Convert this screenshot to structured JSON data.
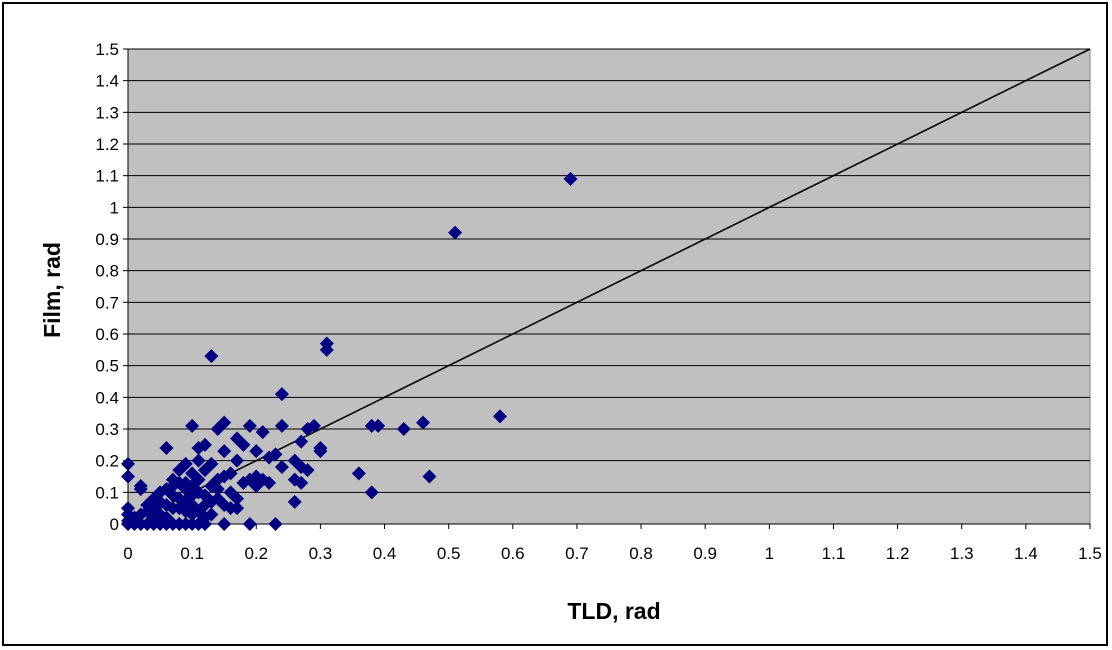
{
  "chart_data": {
    "type": "scatter",
    "title": "",
    "xlabel": "TLD, rad",
    "ylabel": "Film, rad",
    "xlim": [
      0,
      1.5
    ],
    "ylim": [
      0,
      1.5
    ],
    "x_ticks": [
      "0",
      "0.1",
      "0.2",
      "0.3",
      "0.4",
      "0.5",
      "0.6",
      "0.7",
      "0.8",
      "0.9",
      "1",
      "1.1",
      "1.2",
      "1.3",
      "1.4",
      "1.5"
    ],
    "y_ticks": [
      "0",
      "0.1",
      "0.2",
      "0.3",
      "0.4",
      "0.5",
      "0.6",
      "0.7",
      "0.8",
      "0.9",
      "1",
      "1.1",
      "1.2",
      "1.3",
      "1.4",
      "1.5"
    ],
    "grid": "horizontal",
    "legend": "none",
    "colors": {
      "plot_background": "#c0c0c0",
      "marker": "#000080",
      "grid": "#000000",
      "reference_line": "#000000"
    },
    "reference_line": {
      "x": [
        0,
        1.5
      ],
      "y": [
        0,
        1.5
      ]
    },
    "series": [
      {
        "marker": "diamond",
        "points": [
          [
            0.69,
            1.09
          ],
          [
            0.51,
            0.92
          ],
          [
            0.31,
            0.57
          ],
          [
            0.31,
            0.55
          ],
          [
            0.13,
            0.53
          ],
          [
            0.58,
            0.34
          ],
          [
            0.24,
            0.41
          ],
          [
            0.46,
            0.32
          ],
          [
            0.43,
            0.3
          ],
          [
            0.38,
            0.31
          ],
          [
            0.39,
            0.31
          ],
          [
            0.47,
            0.15
          ],
          [
            0.36,
            0.16
          ],
          [
            0.38,
            0.1
          ],
          [
            0.3,
            0.24
          ],
          [
            0.3,
            0.23
          ],
          [
            0.29,
            0.31
          ],
          [
            0.28,
            0.3
          ],
          [
            0.27,
            0.26
          ],
          [
            0.26,
            0.2
          ],
          [
            0.27,
            0.18
          ],
          [
            0.28,
            0.17
          ],
          [
            0.26,
            0.14
          ],
          [
            0.27,
            0.13
          ],
          [
            0.26,
            0.07
          ],
          [
            0.24,
            0.31
          ],
          [
            0.24,
            0.18
          ],
          [
            0.23,
            0.22
          ],
          [
            0.22,
            0.21
          ],
          [
            0.21,
            0.29
          ],
          [
            0.2,
            0.23
          ],
          [
            0.2,
            0.15
          ],
          [
            0.21,
            0.14
          ],
          [
            0.22,
            0.13
          ],
          [
            0.2,
            0.12
          ],
          [
            0.19,
            0.31
          ],
          [
            0.19,
            0.14
          ],
          [
            0.18,
            0.25
          ],
          [
            0.17,
            0.27
          ],
          [
            0.17,
            0.2
          ],
          [
            0.17,
            0.08
          ],
          [
            0.17,
            0.05
          ],
          [
            0.16,
            0.16
          ],
          [
            0.15,
            0.32
          ],
          [
            0.15,
            0.23
          ],
          [
            0.15,
            0.15
          ],
          [
            0.14,
            0.3
          ],
          [
            0.14,
            0.11
          ],
          [
            0.13,
            0.19
          ],
          [
            0.12,
            0.25
          ],
          [
            0.11,
            0.24
          ],
          [
            0.12,
            0.17
          ],
          [
            0.11,
            0.2
          ],
          [
            0.1,
            0.31
          ],
          [
            0.1,
            0.16
          ],
          [
            0.09,
            0.19
          ],
          [
            0.09,
            0.13
          ],
          [
            0.08,
            0.17
          ],
          [
            0.08,
            0.08
          ],
          [
            0.07,
            0.14
          ],
          [
            0.07,
            0.09
          ],
          [
            0.06,
            0.24
          ],
          [
            0.06,
            0.11
          ],
          [
            0.06,
            0.06
          ],
          [
            0.05,
            0.07
          ],
          [
            0.05,
            0.03
          ],
          [
            0.04,
            0.05
          ],
          [
            0.04,
            0.02
          ],
          [
            0.03,
            0.04
          ],
          [
            0.02,
            0.12
          ],
          [
            0.02,
            0.11
          ],
          [
            0.02,
            0.03
          ],
          [
            0.01,
            0.02
          ],
          [
            0.0,
            0.19
          ],
          [
            0.0,
            0.15
          ],
          [
            0.0,
            0.05
          ],
          [
            0.0,
            0.03
          ],
          [
            0.0,
            0.01
          ],
          [
            0.0,
            0.0
          ],
          [
            0.01,
            0.0
          ],
          [
            0.02,
            0.0
          ],
          [
            0.03,
            0.0
          ],
          [
            0.04,
            0.0
          ],
          [
            0.05,
            0.0
          ],
          [
            0.06,
            0.0
          ],
          [
            0.07,
            0.0
          ],
          [
            0.08,
            0.0
          ],
          [
            0.09,
            0.0
          ],
          [
            0.1,
            0.0
          ],
          [
            0.11,
            0.0
          ],
          [
            0.12,
            0.0
          ],
          [
            0.15,
            0.0
          ],
          [
            0.19,
            0.0
          ],
          [
            0.23,
            0.0
          ],
          [
            0.08,
            0.05
          ],
          [
            0.09,
            0.07
          ],
          [
            0.1,
            0.09
          ],
          [
            0.11,
            0.1
          ],
          [
            0.12,
            0.06
          ],
          [
            0.13,
            0.12
          ],
          [
            0.14,
            0.08
          ],
          [
            0.12,
            0.02
          ],
          [
            0.11,
            0.04
          ],
          [
            0.1,
            0.03
          ],
          [
            0.09,
            0.11
          ],
          [
            0.07,
            0.05
          ],
          [
            0.06,
            0.02
          ],
          [
            0.05,
            0.1
          ],
          [
            0.08,
            0.13
          ],
          [
            0.13,
            0.03
          ],
          [
            0.14,
            0.14
          ],
          [
            0.16,
            0.1
          ],
          [
            0.18,
            0.13
          ],
          [
            0.16,
            0.05
          ],
          [
            0.1,
            0.12
          ],
          [
            0.11,
            0.14
          ],
          [
            0.09,
            0.04
          ],
          [
            0.07,
            0.12
          ],
          [
            0.03,
            0.06
          ],
          [
            0.04,
            0.08
          ],
          [
            0.12,
            0.09
          ],
          [
            0.13,
            0.07
          ],
          [
            0.15,
            0.06
          ],
          [
            0.1,
            0.06
          ]
        ]
      }
    ]
  }
}
